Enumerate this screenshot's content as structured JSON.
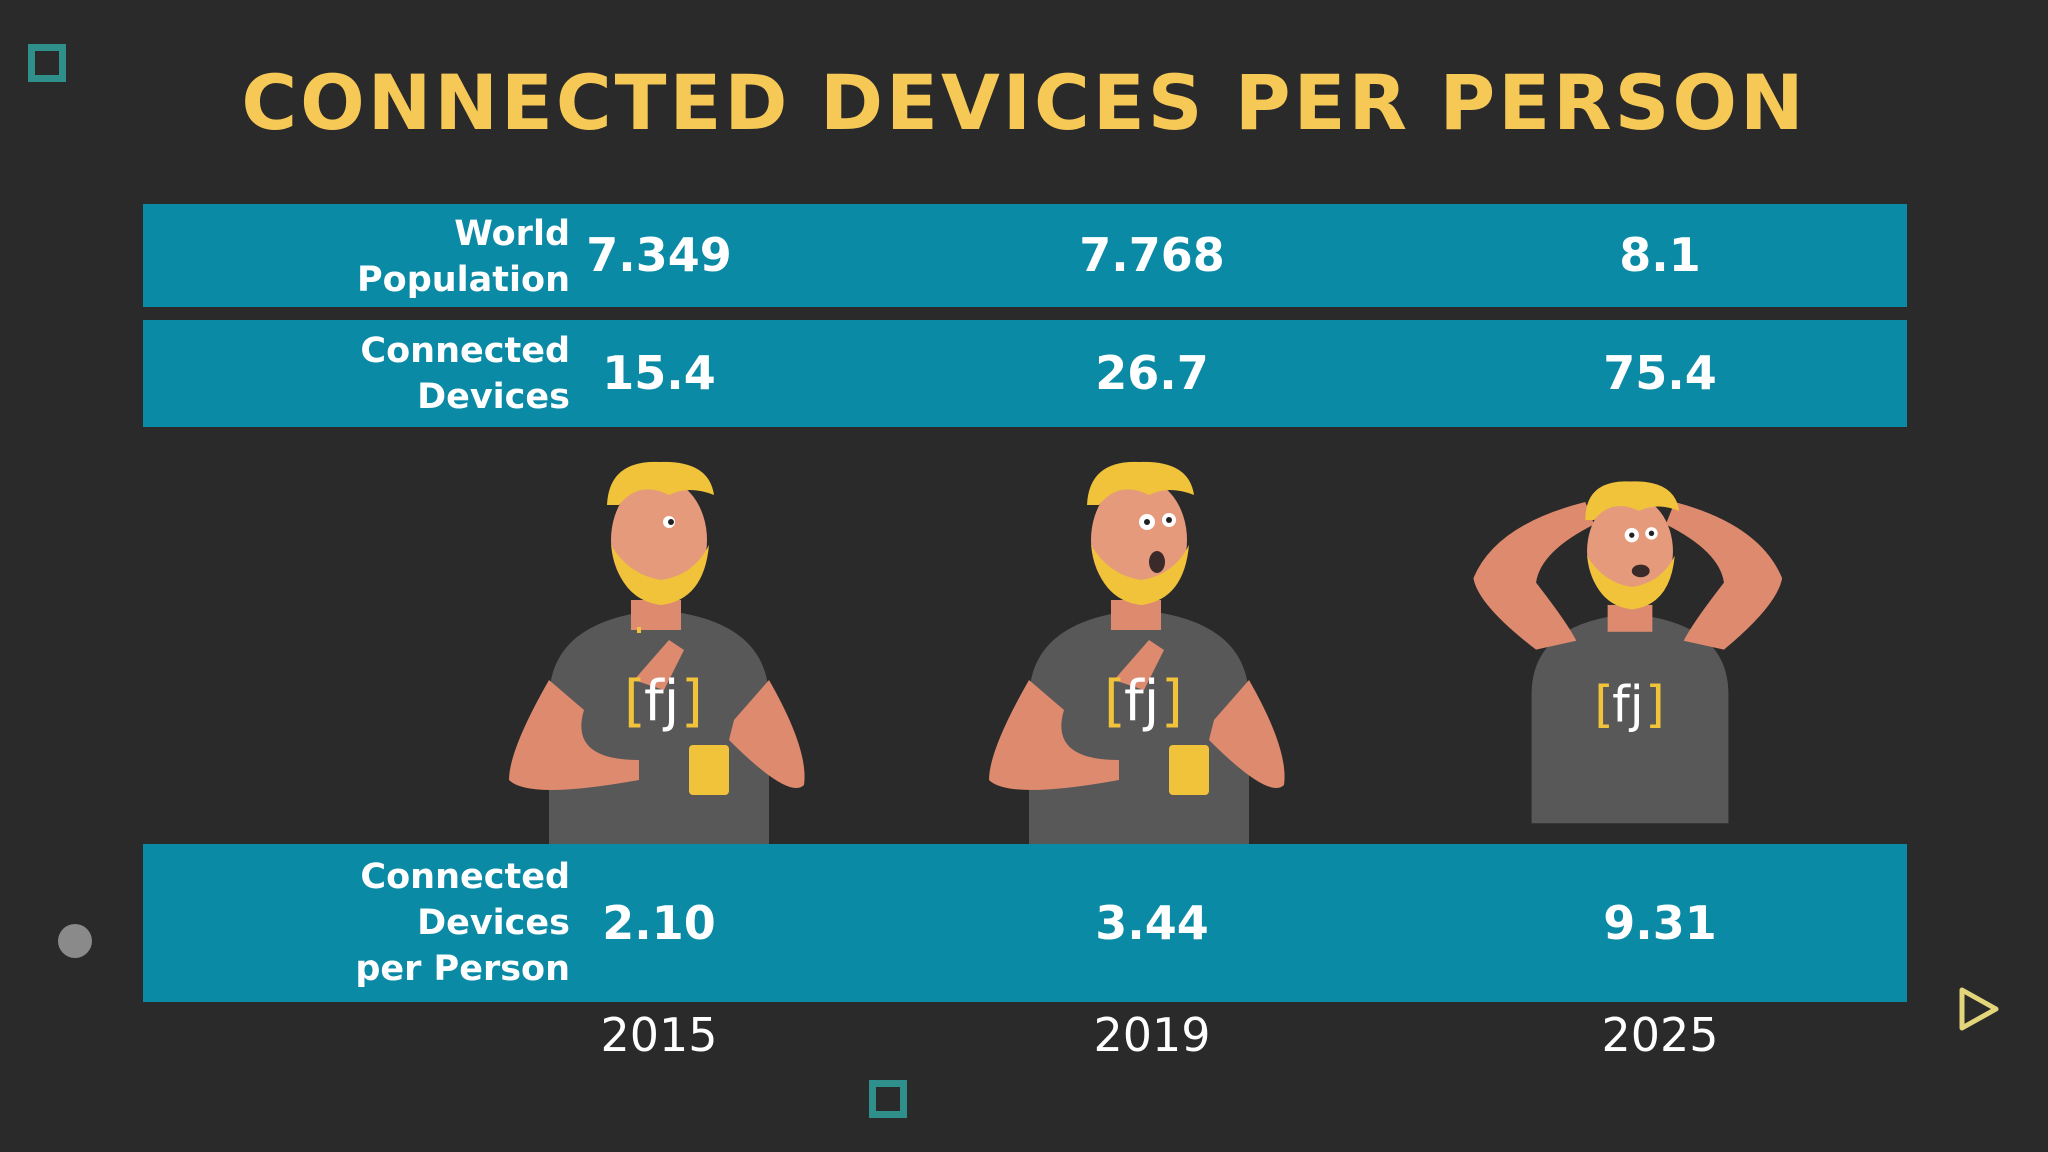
{
  "title": "CONNECTED DEVICES PER PERSON",
  "colors": {
    "background": "#2b2a2b",
    "title": "#f6c957",
    "band": "#0b8aa6",
    "accent_square": "#2f8f8b",
    "accent_triangle": "#e3d57a",
    "dot": "#8a8a8a"
  },
  "chart_data": {
    "type": "table",
    "columns": [
      "2015",
      "2019",
      "2025"
    ],
    "rows": [
      {
        "label": "World Population",
        "values": [
          "7.349",
          "7.768",
          "8.1"
        ]
      },
      {
        "label": "Connected Devices",
        "values": [
          "15.4",
          "26.7",
          "75.4"
        ]
      },
      {
        "label": "Connected Devices per Person",
        "values": [
          "2.10",
          "3.44",
          "9.31"
        ]
      }
    ]
  },
  "labels": {
    "row1": [
      "World",
      "Population"
    ],
    "row2": [
      "Connected",
      "Devices"
    ],
    "row3": [
      "Connected",
      "Devices",
      "per Person"
    ]
  },
  "figures": [
    {
      "year": "2015",
      "mood": "calm",
      "shirt_logo": "[fj]"
    },
    {
      "year": "2019",
      "mood": "worried",
      "shirt_logo": "[fj]"
    },
    {
      "year": "2025",
      "mood": "panicked",
      "shirt_logo": "[fj]"
    }
  ],
  "icons": [
    "square-outline-icon",
    "circle-dot-icon",
    "triangle-play-icon"
  ]
}
